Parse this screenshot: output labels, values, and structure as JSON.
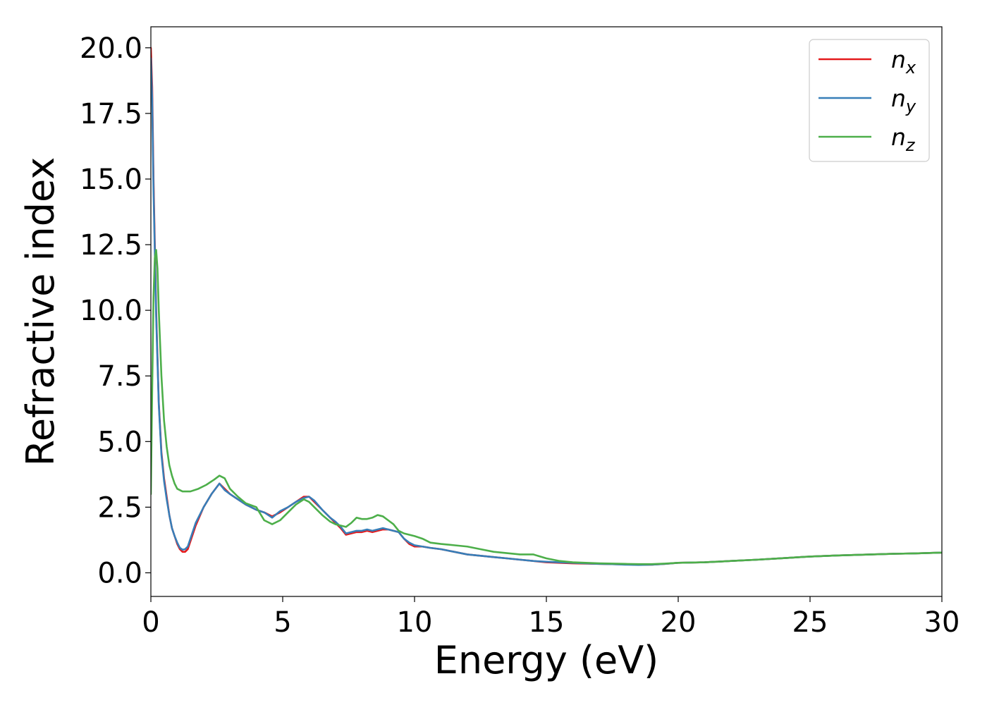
{
  "chart_data": {
    "type": "line",
    "xlabel": "Energy (eV)",
    "ylabel": "Refractive index",
    "xlim": [
      0,
      30
    ],
    "ylim": [
      -0.9,
      20.8
    ],
    "xticks": [
      "0",
      "5",
      "10",
      "15",
      "20",
      "25",
      "30"
    ],
    "yticks": [
      "0.0",
      "2.5",
      "5.0",
      "7.5",
      "10.0",
      "12.5",
      "15.0",
      "17.5",
      "20.0"
    ],
    "grid": false,
    "legend_position": "top-right",
    "series": [
      {
        "name": "n",
        "subscript": "x",
        "color": "#e41a1c",
        "x": [
          0,
          0.05,
          0.1,
          0.2,
          0.3,
          0.4,
          0.5,
          0.6,
          0.7,
          0.8,
          0.9,
          1.0,
          1.1,
          1.2,
          1.3,
          1.4,
          1.5,
          1.7,
          2.0,
          2.3,
          2.6,
          2.8,
          3.0,
          3.3,
          3.6,
          4.0,
          4.3,
          4.6,
          4.9,
          5.2,
          5.5,
          5.8,
          6.0,
          6.2,
          6.5,
          6.8,
          7.0,
          7.2,
          7.4,
          7.6,
          7.8,
          8.0,
          8.2,
          8.4,
          8.6,
          8.8,
          9.0,
          9.2,
          9.4,
          9.6,
          9.8,
          10.0,
          10.3,
          10.6,
          11.0,
          11.5,
          12.0,
          12.5,
          13.0,
          13.5,
          14.0,
          14.5,
          15.0,
          15.5,
          16.0,
          16.5,
          17.0,
          17.5,
          18.0,
          18.5,
          19.0,
          19.5,
          20.0,
          21.0,
          22.0,
          23.0,
          24.0,
          25.0,
          26.0,
          27.0,
          28.0,
          29.0,
          30.0
        ],
        "y": [
          20.0,
          18.5,
          15.0,
          10.0,
          6.5,
          4.6,
          3.6,
          2.9,
          2.2,
          1.7,
          1.4,
          1.1,
          0.9,
          0.8,
          0.8,
          0.9,
          1.2,
          1.8,
          2.5,
          3.0,
          3.4,
          3.2,
          3.0,
          2.8,
          2.6,
          2.4,
          2.3,
          2.15,
          2.3,
          2.5,
          2.7,
          2.9,
          2.9,
          2.7,
          2.4,
          2.1,
          1.9,
          1.7,
          1.45,
          1.5,
          1.55,
          1.55,
          1.6,
          1.55,
          1.6,
          1.65,
          1.65,
          1.6,
          1.55,
          1.3,
          1.1,
          1.0,
          1.0,
          0.95,
          0.9,
          0.8,
          0.7,
          0.65,
          0.6,
          0.55,
          0.5,
          0.45,
          0.4,
          0.38,
          0.36,
          0.35,
          0.34,
          0.33,
          0.32,
          0.31,
          0.31,
          0.34,
          0.38,
          0.4,
          0.45,
          0.5,
          0.56,
          0.62,
          0.66,
          0.69,
          0.72,
          0.74,
          0.77
        ]
      },
      {
        "name": "n",
        "subscript": "y",
        "color": "#377eb8",
        "x": [
          0,
          0.05,
          0.1,
          0.2,
          0.3,
          0.4,
          0.5,
          0.6,
          0.7,
          0.8,
          0.9,
          1.0,
          1.1,
          1.2,
          1.3,
          1.4,
          1.5,
          1.7,
          2.0,
          2.3,
          2.6,
          2.8,
          3.0,
          3.3,
          3.6,
          4.0,
          4.3,
          4.6,
          4.9,
          5.2,
          5.5,
          5.8,
          6.0,
          6.2,
          6.5,
          6.8,
          7.0,
          7.2,
          7.4,
          7.6,
          7.8,
          8.0,
          8.2,
          8.4,
          8.6,
          8.8,
          9.0,
          9.2,
          9.4,
          9.6,
          9.8,
          10.0,
          10.3,
          10.6,
          11.0,
          11.5,
          12.0,
          12.5,
          13.0,
          13.5,
          14.0,
          14.5,
          15.0,
          15.5,
          16.0,
          16.5,
          17.0,
          17.5,
          18.0,
          18.5,
          19.0,
          19.5,
          20.0,
          21.0,
          22.0,
          23.0,
          24.0,
          25.0,
          26.0,
          27.0,
          28.0,
          29.0,
          30.0
        ],
        "y": [
          19.6,
          18.0,
          14.6,
          9.8,
          6.4,
          4.5,
          3.5,
          2.8,
          2.2,
          1.7,
          1.4,
          1.15,
          0.95,
          0.88,
          0.9,
          1.0,
          1.3,
          1.9,
          2.5,
          3.0,
          3.4,
          3.15,
          3.0,
          2.8,
          2.6,
          2.4,
          2.3,
          2.1,
          2.35,
          2.5,
          2.7,
          2.85,
          2.9,
          2.75,
          2.4,
          2.1,
          1.95,
          1.75,
          1.5,
          1.55,
          1.6,
          1.6,
          1.65,
          1.6,
          1.65,
          1.7,
          1.65,
          1.6,
          1.55,
          1.3,
          1.15,
          1.05,
          1.0,
          0.95,
          0.9,
          0.8,
          0.7,
          0.65,
          0.6,
          0.55,
          0.5,
          0.45,
          0.42,
          0.4,
          0.38,
          0.36,
          0.34,
          0.33,
          0.31,
          0.3,
          0.31,
          0.34,
          0.38,
          0.4,
          0.45,
          0.5,
          0.56,
          0.62,
          0.66,
          0.69,
          0.72,
          0.74,
          0.77
        ]
      },
      {
        "name": "n",
        "subscript": "z",
        "color": "#4daf4a",
        "x": [
          0,
          0.05,
          0.1,
          0.15,
          0.2,
          0.25,
          0.3,
          0.4,
          0.5,
          0.6,
          0.7,
          0.8,
          0.9,
          1.0,
          1.2,
          1.5,
          1.8,
          2.1,
          2.4,
          2.6,
          2.8,
          3.0,
          3.3,
          3.6,
          4.0,
          4.3,
          4.6,
          4.9,
          5.2,
          5.5,
          5.8,
          6.0,
          6.2,
          6.5,
          6.8,
          7.0,
          7.2,
          7.4,
          7.6,
          7.8,
          8.0,
          8.2,
          8.4,
          8.6,
          8.8,
          9.0,
          9.2,
          9.4,
          9.6,
          9.8,
          10.0,
          10.3,
          10.6,
          11.0,
          11.5,
          12.0,
          12.5,
          13.0,
          13.5,
          14.0,
          14.5,
          15.0,
          15.5,
          16.0,
          16.5,
          17.0,
          17.5,
          18.0,
          18.5,
          19.0,
          19.5,
          20.0,
          21.0,
          22.0,
          23.0,
          24.0,
          25.0,
          26.0,
          27.0,
          28.0,
          29.0,
          30.0
        ],
        "y": [
          3.0,
          7.0,
          10.5,
          12.0,
          12.3,
          11.6,
          10.0,
          7.5,
          5.8,
          4.8,
          4.1,
          3.7,
          3.4,
          3.2,
          3.1,
          3.1,
          3.2,
          3.35,
          3.55,
          3.7,
          3.6,
          3.2,
          2.9,
          2.65,
          2.5,
          2.0,
          1.85,
          2.0,
          2.3,
          2.6,
          2.8,
          2.7,
          2.5,
          2.2,
          1.95,
          1.85,
          1.8,
          1.75,
          1.9,
          2.1,
          2.05,
          2.05,
          2.1,
          2.2,
          2.15,
          2.0,
          1.85,
          1.6,
          1.5,
          1.45,
          1.4,
          1.3,
          1.15,
          1.1,
          1.05,
          1.0,
          0.9,
          0.8,
          0.75,
          0.7,
          0.7,
          0.55,
          0.45,
          0.4,
          0.38,
          0.36,
          0.35,
          0.34,
          0.33,
          0.33,
          0.35,
          0.38,
          0.4,
          0.45,
          0.5,
          0.56,
          0.62,
          0.66,
          0.69,
          0.72,
          0.74,
          0.77
        ]
      }
    ]
  }
}
